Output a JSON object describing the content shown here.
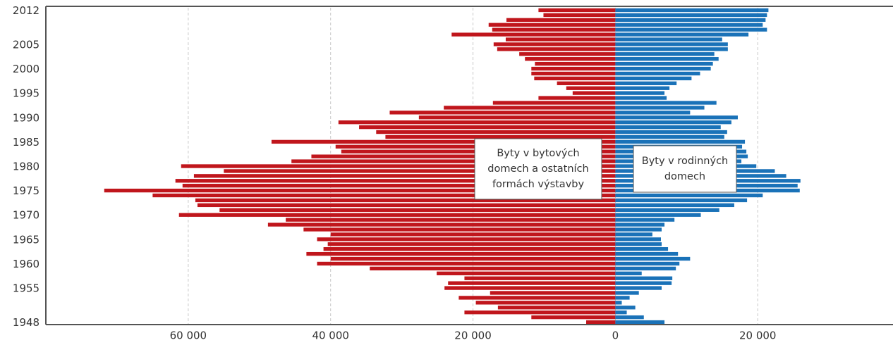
{
  "chart_data": {
    "type": "bar",
    "orientation": "horizontal",
    "diverging": true,
    "categories": [
      1948,
      null,
      null,
      null,
      null,
      null,
      null,
      1955,
      null,
      null,
      null,
      null,
      1960,
      null,
      null,
      null,
      null,
      1965,
      null,
      null,
      null,
      null,
      1970,
      null,
      null,
      null,
      null,
      1975,
      null,
      null,
      null,
      null,
      1980,
      null,
      null,
      null,
      null,
      1985,
      null,
      null,
      null,
      null,
      1990,
      null,
      null,
      null,
      null,
      1995,
      null,
      null,
      null,
      null,
      2000,
      null,
      null,
      null,
      null,
      2005,
      null,
      null,
      null,
      null,
      null,
      null,
      2012
    ],
    "series": [
      {
        "color": "#c0161c",
        "values": [
          -4100,
          -11800,
          -21200,
          -16500,
          -19600,
          -22000,
          -17600,
          -24000,
          -23500,
          -21200,
          -25100,
          -34500,
          -41900,
          -40000,
          -43400,
          -41000,
          -40400,
          -41900,
          -40000,
          -43800,
          -48800,
          -46300,
          -61300,
          -55600,
          -58700,
          -59000,
          -65000,
          -71800,
          -60800,
          -61800,
          -59200,
          -55000,
          -61000,
          -45500,
          -42700,
          -38500,
          -39300,
          -48300,
          -32300,
          -33600,
          -36000,
          -38900,
          -27600,
          -31700,
          -24100,
          -17200,
          -10800,
          -6000,
          -6900,
          -8200,
          -11400,
          -11800,
          -11800,
          -11300,
          -12700,
          -13500,
          -16600,
          -17100,
          -15400,
          -23000,
          -17300,
          -17800,
          -15300,
          -10100,
          -10800
        ]
      },
      {
        "color": "#1a72b8",
        "values": [
          6900,
          4000,
          1600,
          2800,
          900,
          2000,
          3300,
          6500,
          7900,
          8000,
          3700,
          8500,
          9000,
          10500,
          8800,
          7400,
          6500,
          6400,
          5200,
          6500,
          6900,
          8300,
          12000,
          14600,
          16700,
          18500,
          20700,
          25900,
          25600,
          26000,
          24000,
          22400,
          19800,
          17700,
          18600,
          18400,
          17800,
          18200,
          15300,
          15700,
          14800,
          16300,
          17200,
          10500,
          12500,
          14200,
          7200,
          6900,
          7600,
          8600,
          10700,
          11900,
          13400,
          13700,
          14500,
          13900,
          15800,
          15800,
          15000,
          18700,
          21300,
          20700,
          21100,
          21300,
          21500
        ]
      }
    ],
    "xlim": [
      -80000,
      39000
    ],
    "xticks": [
      {
        "value": -60000,
        "label": "60 000"
      },
      {
        "value": -40000,
        "label": "40 000"
      },
      {
        "value": -20000,
        "label": "20 000"
      },
      0,
      {
        "value": 20000,
        "label": "20 000"
      }
    ],
    "grid": true,
    "annotations": [
      {
        "lines": [
          "Byty v bytových",
          "domech a ostatních",
          "formách výstavby"
        ]
      },
      {
        "lines": [
          "Byty v rodinných",
          "domech"
        ]
      }
    ]
  }
}
